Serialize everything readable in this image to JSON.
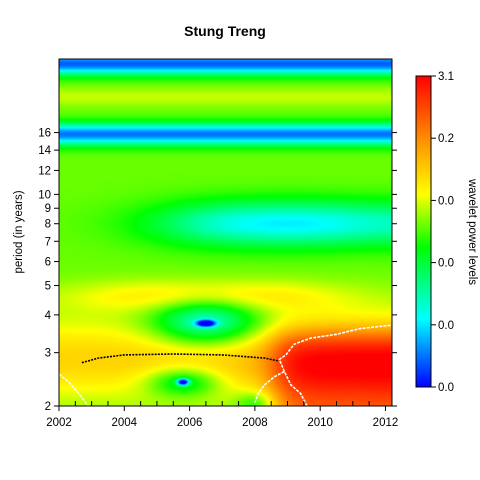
{
  "chart_data": {
    "type": "heatmap",
    "title": "Stung Treng",
    "xlabel": "",
    "ylabel": "period (in years)",
    "x_ticks": [
      2002,
      2004,
      2006,
      2008,
      2010,
      2012
    ],
    "x_range": [
      2002,
      2012.2
    ],
    "y_scale": "log2",
    "y_ticks": [
      2,
      3,
      4,
      5,
      6,
      7,
      8,
      9,
      10,
      12,
      14,
      16
    ],
    "y_range": [
      2,
      28
    ],
    "colorbar": {
      "label": "wavelet power levels",
      "tick_labels": [
        "3.1",
        "0.2",
        "0.0",
        "0.0",
        "0.0",
        "0.0"
      ],
      "colors": [
        "#ff0000",
        "#ff8c00",
        "#ffff00",
        "#00ff00",
        "#00ffff",
        "#0000ff"
      ]
    },
    "features": [
      {
        "name": "high power region",
        "year_range": [
          2008.5,
          2012.2
        ],
        "period_range": [
          2,
          3.6
        ]
      },
      {
        "name": "band near 4 years",
        "period": 4.4,
        "year_range": [
          2002,
          2012.2
        ]
      },
      {
        "name": "low power minimum",
        "year": 2006.5,
        "period": 3.75
      },
      {
        "name": "low power minimum",
        "year": 2005.8,
        "period": 2.4
      },
      {
        "name": "low power region",
        "year_range": [
          2008,
          2012.2
        ],
        "period_range": [
          6.8,
          9.5
        ]
      },
      {
        "name": "low power band",
        "period_range": [
          14,
          18
        ]
      },
      {
        "name": "low power band",
        "period_range": [
          24,
          28
        ]
      }
    ]
  }
}
